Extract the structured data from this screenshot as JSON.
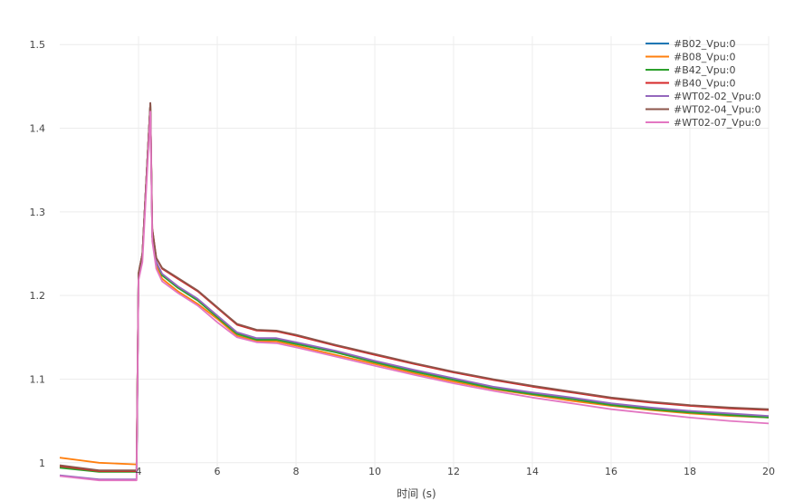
{
  "chart_data": {
    "type": "line",
    "title": "",
    "xlabel": "时间 (s)",
    "ylabel": "",
    "xlim": [
      2,
      20
    ],
    "ylim": [
      0.99,
      1.51
    ],
    "grid": true,
    "legend_position": "top-right",
    "x_ticks": [
      4,
      6,
      8,
      10,
      12,
      14,
      16,
      18,
      20
    ],
    "x_tick_labels": [
      "4",
      "6",
      "8",
      "10",
      "12",
      "14",
      "16",
      "18",
      "20"
    ],
    "y_ticks": [
      1.0,
      1.1,
      1.2,
      1.3,
      1.4,
      1.5
    ],
    "y_tick_labels": [
      "1",
      "1.1",
      "1.2",
      "1.3",
      "1.4",
      "1.5"
    ],
    "x": [
      2.0,
      3.0,
      3.95,
      4.0,
      4.1,
      4.3,
      4.35,
      4.45,
      4.6,
      5.0,
      5.5,
      6.0,
      6.5,
      7.0,
      7.5,
      8.0,
      9.0,
      10.0,
      11.0,
      12.0,
      13.0,
      14.0,
      15.0,
      16.0,
      17.0,
      18.0,
      19.0,
      20.0
    ],
    "series": [
      {
        "name": "#B02_Vpu:0",
        "color": "#1f77b4",
        "values": [
          0.995,
          0.99,
          0.99,
          1.225,
          1.25,
          1.43,
          1.27,
          1.24,
          1.225,
          1.21,
          1.195,
          1.175,
          1.155,
          1.148,
          1.148,
          1.143,
          1.133,
          1.121,
          1.11,
          1.1,
          1.09,
          1.083,
          1.077,
          1.07,
          1.065,
          1.061,
          1.058,
          1.055
        ]
      },
      {
        "name": "#B08_Vpu:0",
        "color": "#ff7f0e",
        "values": [
          1.006,
          1.0,
          0.998,
          1.22,
          1.25,
          1.43,
          1.27,
          1.235,
          1.22,
          1.205,
          1.19,
          1.172,
          1.152,
          1.145,
          1.145,
          1.14,
          1.129,
          1.118,
          1.107,
          1.097,
          1.088,
          1.081,
          1.074,
          1.068,
          1.063,
          1.059,
          1.056,
          1.054
        ]
      },
      {
        "name": "#B42_Vpu:0",
        "color": "#2ca02c",
        "values": [
          0.994,
          0.989,
          0.989,
          1.224,
          1.25,
          1.43,
          1.27,
          1.24,
          1.224,
          1.209,
          1.194,
          1.174,
          1.154,
          1.147,
          1.147,
          1.142,
          1.132,
          1.12,
          1.109,
          1.099,
          1.089,
          1.082,
          1.076,
          1.069,
          1.064,
          1.06,
          1.057,
          1.054
        ]
      },
      {
        "name": "#B40_Vpu:0",
        "color": "#d62728",
        "values": [
          0.996,
          0.99,
          0.99,
          1.226,
          1.25,
          1.43,
          1.28,
          1.245,
          1.232,
          1.22,
          1.205,
          1.185,
          1.165,
          1.158,
          1.157,
          1.152,
          1.14,
          1.129,
          1.118,
          1.108,
          1.099,
          1.091,
          1.084,
          1.077,
          1.072,
          1.068,
          1.065,
          1.063
        ]
      },
      {
        "name": "#WT02-02_Vpu:0",
        "color": "#9467bd",
        "values": [
          0.985,
          0.98,
          0.98,
          1.223,
          1.25,
          1.43,
          1.27,
          1.24,
          1.226,
          1.211,
          1.196,
          1.176,
          1.156,
          1.149,
          1.149,
          1.144,
          1.134,
          1.122,
          1.111,
          1.101,
          1.091,
          1.084,
          1.078,
          1.071,
          1.066,
          1.062,
          1.059,
          1.056
        ]
      },
      {
        "name": "#WT02-04_Vpu:0",
        "color": "#8c564b",
        "values": [
          0.997,
          0.991,
          0.991,
          1.227,
          1.25,
          1.43,
          1.28,
          1.245,
          1.233,
          1.221,
          1.206,
          1.186,
          1.166,
          1.159,
          1.158,
          1.153,
          1.141,
          1.13,
          1.119,
          1.109,
          1.1,
          1.092,
          1.085,
          1.078,
          1.073,
          1.069,
          1.066,
          1.064
        ]
      },
      {
        "name": "#WT02-07_Vpu:0",
        "color": "#e377c2",
        "values": [
          0.984,
          0.979,
          0.979,
          1.218,
          1.24,
          1.42,
          1.265,
          1.232,
          1.217,
          1.203,
          1.188,
          1.168,
          1.15,
          1.144,
          1.143,
          1.138,
          1.127,
          1.116,
          1.105,
          1.095,
          1.086,
          1.078,
          1.071,
          1.064,
          1.059,
          1.054,
          1.05,
          1.047
        ]
      }
    ]
  }
}
